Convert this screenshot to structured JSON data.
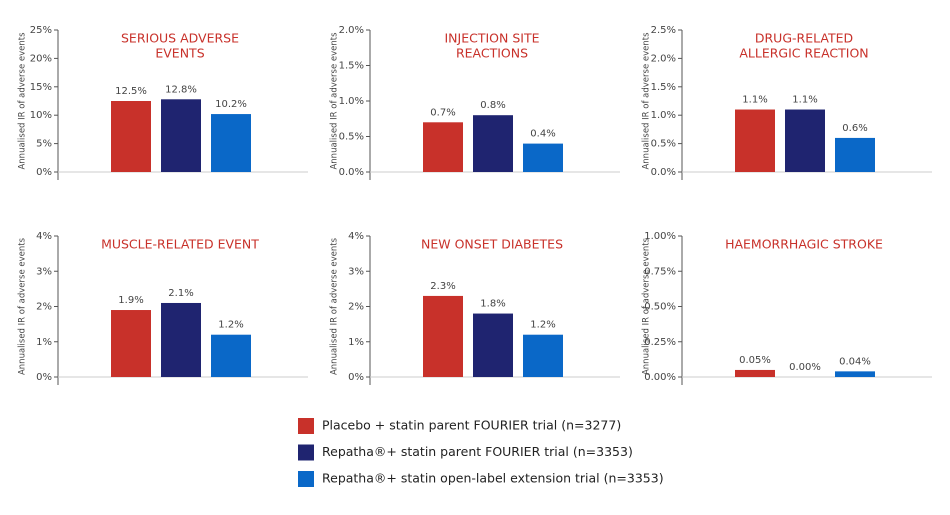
{
  "legend": [
    {
      "name": "Placebo + statin parent FOURIER trial (n=3277)",
      "color": "#c8312a"
    },
    {
      "name": "Repatha®+ statin parent FOURIER trial (n=3353)",
      "color": "#1f2470"
    },
    {
      "name": "Repatha®+ statin open-label extension trial (n=3353)",
      "color": "#0a68c8"
    }
  ],
  "chart_data": [
    {
      "type": "bar",
      "title": [
        "SERIOUS ADVERSE",
        "EVENTS"
      ],
      "ylabel": "Annualised IR of adverse events",
      "values": [
        12.5,
        12.8,
        10.2
      ],
      "value_labels": [
        "12.5%",
        "12.8%",
        "10.2%"
      ],
      "ylim": [
        0,
        25
      ],
      "yticks": [
        {
          "value": 0,
          "label": "0%"
        },
        {
          "value": 5,
          "label": "5%"
        },
        {
          "value": 10,
          "label": "10%"
        },
        {
          "value": 15,
          "label": "15%"
        },
        {
          "value": 20,
          "label": "20%"
        },
        {
          "value": 25,
          "label": "25%"
        }
      ]
    },
    {
      "type": "bar",
      "title": [
        "INJECTION SITE",
        "REACTIONS"
      ],
      "ylabel": "Annualised IR of adverse events",
      "values": [
        0.7,
        0.8,
        0.4
      ],
      "value_labels": [
        "0.7%",
        "0.8%",
        "0.4%"
      ],
      "ylim": [
        0,
        2
      ],
      "yticks": [
        {
          "value": 0,
          "label": "0.0%"
        },
        {
          "value": 0.5,
          "label": "0.5%"
        },
        {
          "value": 1,
          "label": "1.0%"
        },
        {
          "value": 1.5,
          "label": "1.5%"
        },
        {
          "value": 2,
          "label": "2.0%"
        }
      ]
    },
    {
      "type": "bar",
      "title": [
        "DRUG-RELATED",
        "ALLERGIC REACTION"
      ],
      "ylabel": "Annualised IR of adverse events",
      "values": [
        1.1,
        1.1,
        0.6
      ],
      "value_labels": [
        "1.1%",
        "1.1%",
        "0.6%"
      ],
      "ylim": [
        0,
        2.5
      ],
      "yticks": [
        {
          "value": 0,
          "label": "0.0%"
        },
        {
          "value": 0.5,
          "label": "0.5%"
        },
        {
          "value": 1,
          "label": "1.0%"
        },
        {
          "value": 1.5,
          "label": "1.5%"
        },
        {
          "value": 2,
          "label": "2.0%"
        },
        {
          "value": 2.5,
          "label": "2.5%"
        }
      ]
    },
    {
      "type": "bar",
      "title": [
        "MUSCLE-RELATED EVENT"
      ],
      "ylabel": "Annualised IR of adverse events",
      "values": [
        1.9,
        2.1,
        1.2
      ],
      "value_labels": [
        "1.9%",
        "2.1%",
        "1.2%"
      ],
      "ylim": [
        0,
        4
      ],
      "yticks": [
        {
          "value": 0,
          "label": "0%"
        },
        {
          "value": 1,
          "label": "1%"
        },
        {
          "value": 2,
          "label": "2%"
        },
        {
          "value": 3,
          "label": "3%"
        },
        {
          "value": 4,
          "label": "4%"
        }
      ]
    },
    {
      "type": "bar",
      "title": [
        "NEW ONSET DIABETES"
      ],
      "ylabel": "Annualised IR of adverse events",
      "values": [
        2.3,
        1.8,
        1.2
      ],
      "value_labels": [
        "2.3%",
        "1.8%",
        "1.2%"
      ],
      "ylim": [
        0,
        4
      ],
      "yticks": [
        {
          "value": 0,
          "label": "0%"
        },
        {
          "value": 1,
          "label": "1%"
        },
        {
          "value": 2,
          "label": "2%"
        },
        {
          "value": 3,
          "label": "3%"
        },
        {
          "value": 4,
          "label": "4%"
        }
      ]
    },
    {
      "type": "bar",
      "title": [
        "HAEMORRHAGIC STROKE"
      ],
      "ylabel": "Annualised IR of adverse events",
      "values": [
        0.05,
        0,
        0.04
      ],
      "value_labels": [
        "0.05%",
        "0.00%",
        "0.04%"
      ],
      "ylim": [
        0,
        1
      ],
      "yticks": [
        {
          "value": 0,
          "label": "0.00%"
        },
        {
          "value": 0.25,
          "label": "0.25%"
        },
        {
          "value": 0.5,
          "label": "0.50%"
        },
        {
          "value": 0.75,
          "label": "0.75%"
        },
        {
          "value": 1,
          "label": "1.00%"
        }
      ]
    }
  ]
}
